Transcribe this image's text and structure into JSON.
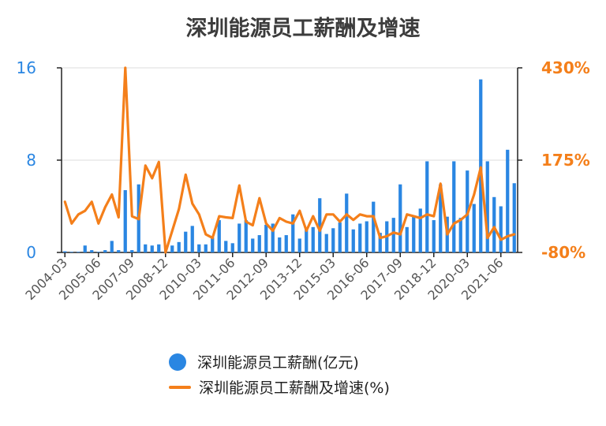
{
  "chart_data": {
    "type": "bar+line",
    "title": "深圳能源员工薪酬及增速",
    "x_tick_labels": [
      "2004-03",
      "2005-06",
      "2007-09",
      "2008-12",
      "2010-03",
      "2011-06",
      "2012-09",
      "2013-12",
      "2015-03",
      "2016-06",
      "2017-09",
      "2018-12",
      "2020-03",
      "2021-06"
    ],
    "left_axis": {
      "min": 0,
      "max": 16,
      "ticks": [
        "16",
        "8",
        "0"
      ]
    },
    "right_axis": {
      "min": -80,
      "max": 430,
      "ticks": [
        "430%",
        "175%",
        "-80%"
      ]
    },
    "series": [
      {
        "name": "深圳能源员工薪酬(亿元)",
        "kind": "bar",
        "color": "#2a86e2",
        "values": [
          0.1,
          0.05,
          0.05,
          0.6,
          0.2,
          0.05,
          0.2,
          1.0,
          0.2,
          5.4,
          0.2,
          5.9,
          0.7,
          0.6,
          0.7,
          0.05,
          0.6,
          0.9,
          1.8,
          2.3,
          0.7,
          0.7,
          1.3,
          2.8,
          1.0,
          0.8,
          2.5,
          2.8,
          1.2,
          1.5,
          2.4,
          2.5,
          1.3,
          1.5,
          3.3,
          1.2,
          2.0,
          2.2,
          4.7,
          1.6,
          2.1,
          2.6,
          5.1,
          2.0,
          2.5,
          2.7,
          4.4,
          1.7,
          2.7,
          3.0,
          5.9,
          2.2,
          3.2,
          3.8,
          7.9,
          2.8,
          5.9,
          3.1,
          7.9,
          3.0,
          7.1,
          4.2,
          15.0,
          7.9,
          4.8,
          4.0,
          8.9,
          6.0
        ]
      },
      {
        "name": "深圳能源员工薪酬及增速(%)",
        "kind": "line",
        "color": "#f47f1a",
        "values": [
          60,
          0,
          25,
          35,
          60,
          0,
          45,
          80,
          17,
          430,
          20,
          12,
          160,
          125,
          170,
          -80,
          -20,
          40,
          135,
          55,
          25,
          -30,
          -40,
          20,
          17,
          15,
          105,
          5,
          -5,
          70,
          0,
          -20,
          15,
          5,
          0,
          35,
          -20,
          20,
          -20,
          25,
          25,
          5,
          25,
          10,
          25,
          20,
          20,
          -40,
          -35,
          -25,
          -30,
          25,
          20,
          15,
          25,
          20,
          110,
          -30,
          0,
          10,
          25,
          80,
          155,
          -40,
          -10,
          -45,
          -35,
          -30
        ]
      }
    ]
  }
}
